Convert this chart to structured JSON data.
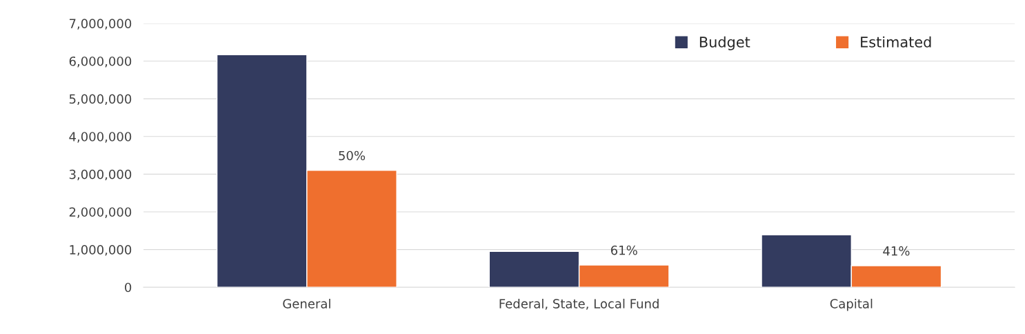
{
  "chart_data": {
    "type": "bar",
    "categories": [
      "General",
      "Federal, State, Local Fund",
      "Capital"
    ],
    "series": [
      {
        "name": "Budget",
        "color": "#333b5f",
        "values": [
          6170000,
          950000,
          1390000
        ]
      },
      {
        "name": "Estimated",
        "color": "#ef6f2e",
        "values": [
          3100000,
          590000,
          570000
        ]
      }
    ],
    "annotations": [
      {
        "text": "50%",
        "x": "General",
        "y": 3100000
      },
      {
        "text": "61%",
        "x": "Federal, State, Local Fund",
        "y": 590000
      },
      {
        "text": "41%",
        "x": "Capital",
        "y": 570000
      }
    ],
    "ylim": [
      0,
      7000000
    ],
    "yticks": [
      {
        "value": 0,
        "label": "0"
      },
      {
        "value": 1000000,
        "label": "1,000,000"
      },
      {
        "value": 2000000,
        "label": "2,000,000"
      },
      {
        "value": 3000000,
        "label": "3,000,000"
      },
      {
        "value": 4000000,
        "label": "4,000,000"
      },
      {
        "value": 5000000,
        "label": "5,000,000"
      },
      {
        "value": 6000000,
        "label": "6,000,000"
      },
      {
        "value": 7000000,
        "label": "7,000,000"
      }
    ],
    "grid": "y",
    "legend": "top right"
  }
}
